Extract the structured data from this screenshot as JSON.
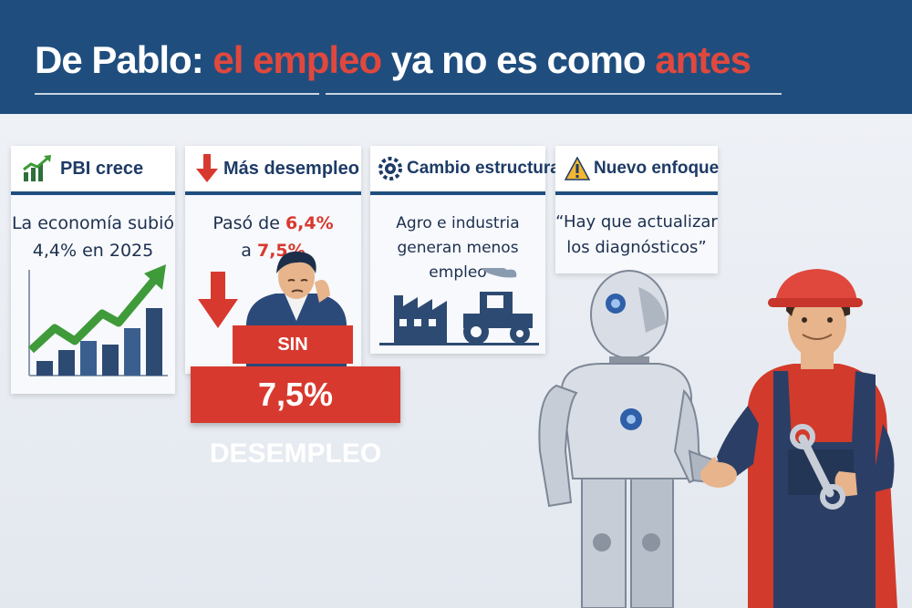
{
  "header": {
    "title_part1": "De Pablo: ",
    "title_part2": "el empleo",
    "title_part3": " ya no es como ",
    "title_part4": "antes"
  },
  "cards": [
    {
      "icon": "growth-chart-icon",
      "label": "PBI crece",
      "line1": "La economía subió",
      "line2_value": "4,4%",
      "line2_rest": " en 2025"
    },
    {
      "icon": "down-arrow-icon",
      "label": "Más desempleo",
      "line1_prefix": "Pasó de ",
      "line1_value": "6,4%",
      "line2_prefix": "a ",
      "line2_value": "7,5%"
    },
    {
      "icon": "gear-icon",
      "label": "Cambio estructural",
      "line1": "Agro e industria",
      "line2": "generan menos empleo"
    },
    {
      "icon": "warning-icon",
      "label": "Nuevo enfoque",
      "line1": "“Hay que actualizar",
      "line2": "los diagnósticos”"
    }
  ],
  "signs": {
    "sin_trabajo": "SIN TRABAJO",
    "desempleo_value": "7,5%",
    "desempleo_label": " DESEMPLEO"
  },
  "colors": {
    "header_bg": "#1f4e7e",
    "accent_red": "#d8392f",
    "chart_green": "#3f9a3a",
    "robot_silver": "#d9dee6",
    "worker_red": "#d23a2c",
    "overall_blue": "#2b3f66"
  }
}
